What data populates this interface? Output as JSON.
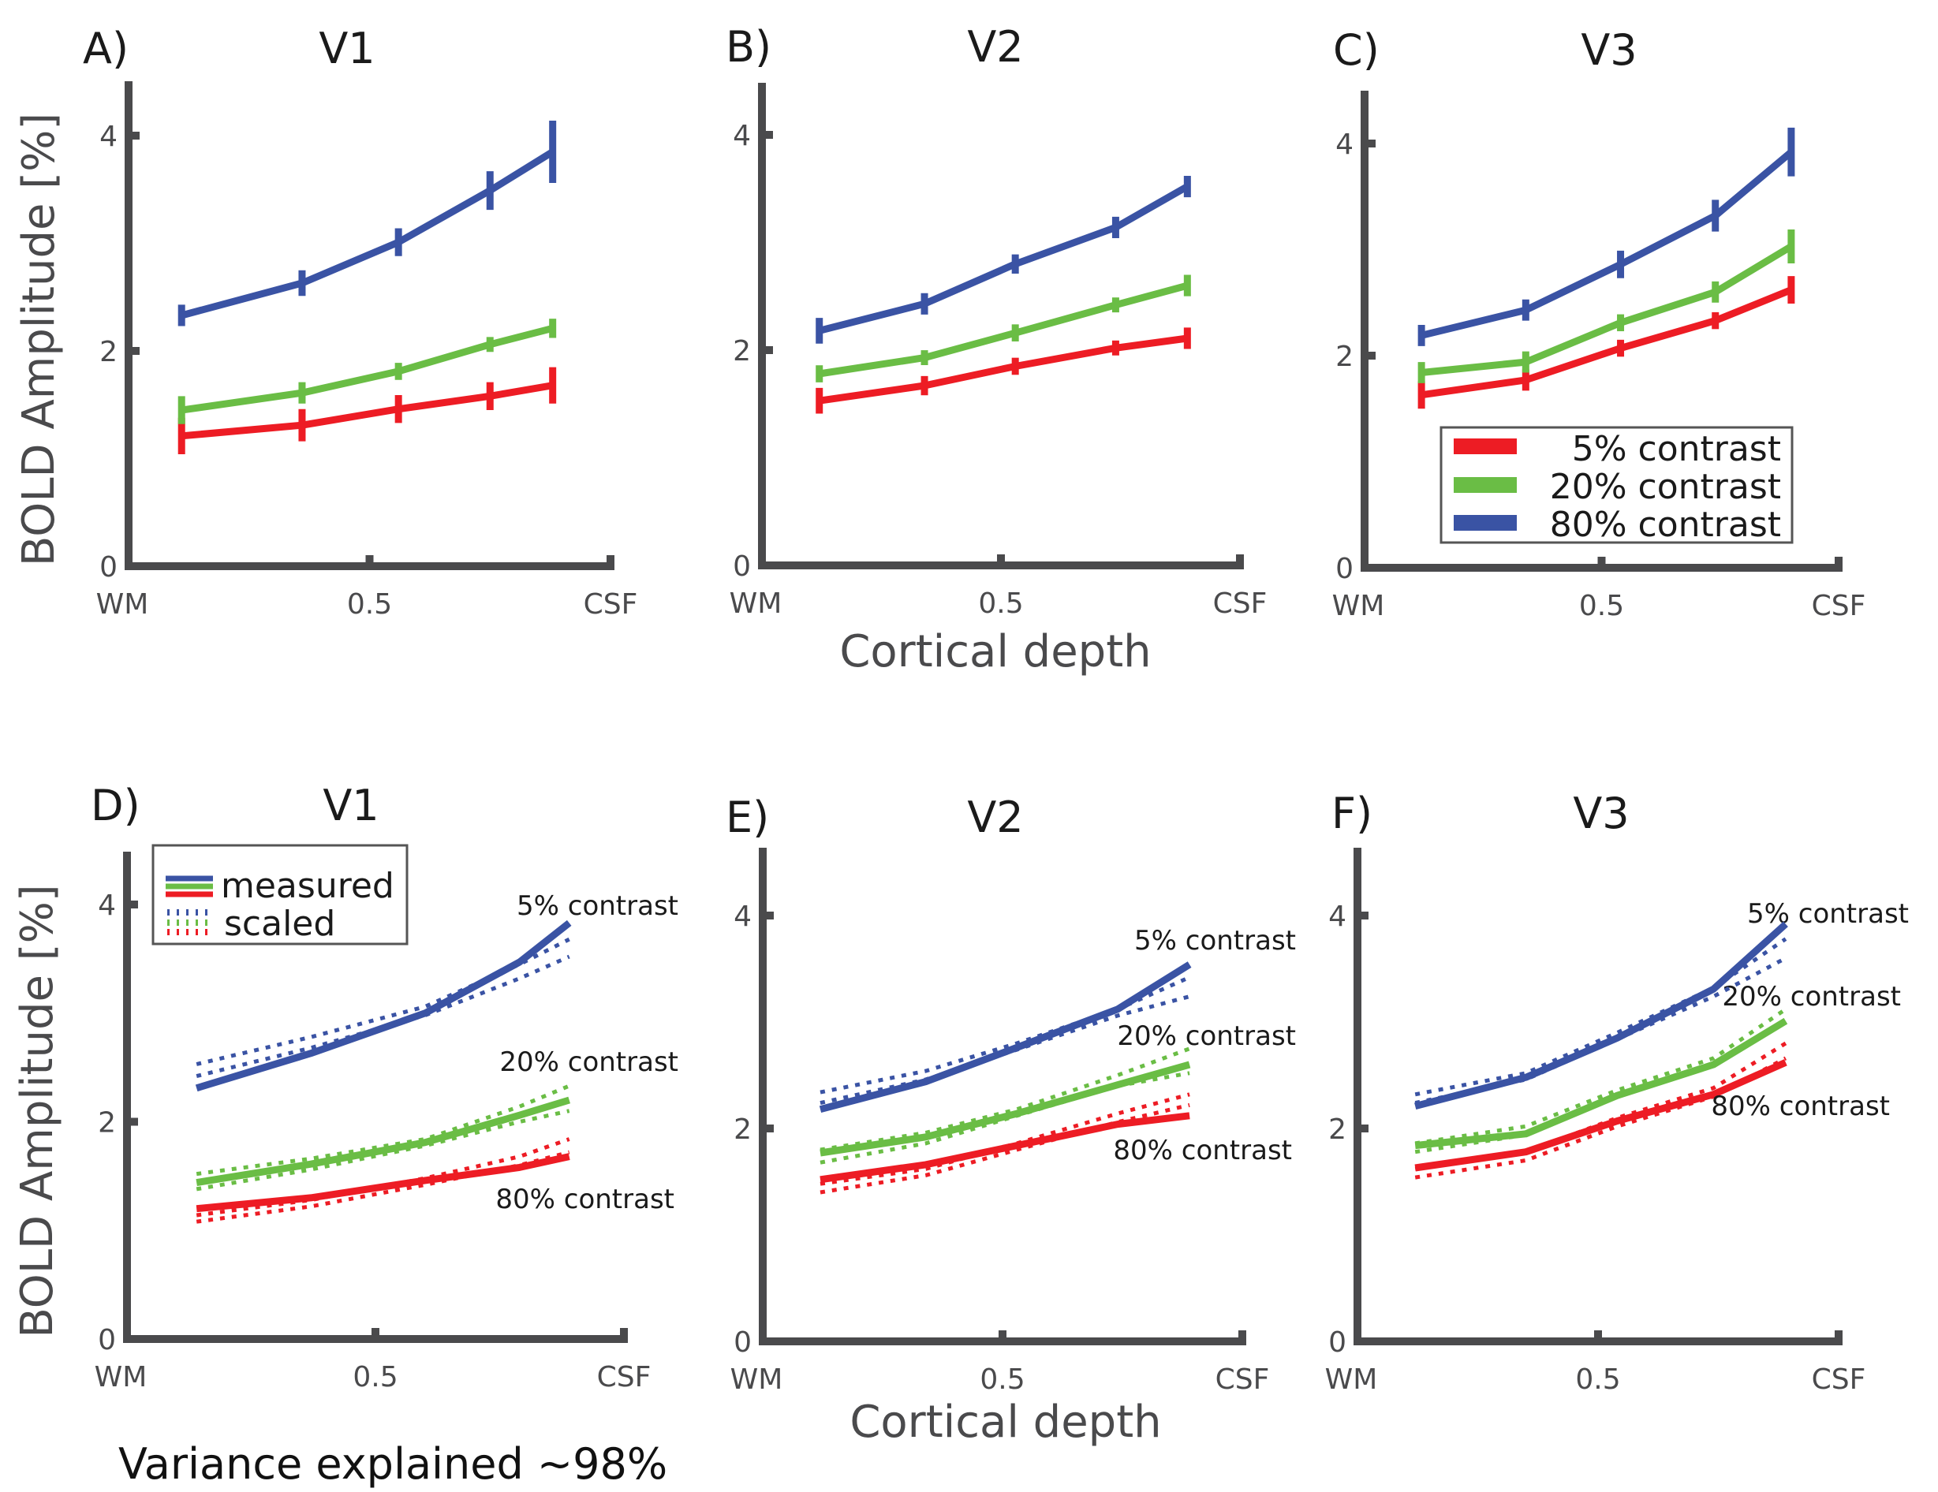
{
  "figure": {
    "shared_xlabel": "Cortical depth",
    "footer": "Variance explained ~98%"
  },
  "colors": {
    "c5": "#ED1C24",
    "c20": "#6ABD45",
    "c80": "#3A53A4",
    "axis": "#4A4A4C"
  },
  "legend_top": {
    "items": [
      {
        "label": "5% contrast",
        "color": "#ED1C24"
      },
      {
        "label": "20% contrast",
        "color": "#6ABD45"
      },
      {
        "label": "80% contrast",
        "color": "#3A53A4"
      }
    ]
  },
  "legend_bottom": {
    "measured_label": "measured",
    "scaled_label": "scaled"
  },
  "chart_data": [
    {
      "type": "line",
      "panel": "A)",
      "title": "V1",
      "ylabel": "BOLD Amplitude [%]",
      "xlabel": "",
      "xlim": [
        0,
        1
      ],
      "ylim": [
        0,
        4.5
      ],
      "yticks": [
        0,
        2,
        4
      ],
      "xticks": [
        {
          "value": 0,
          "label": "WM"
        },
        {
          "value": 0.5,
          "label": "0.5"
        },
        {
          "value": 1,
          "label": "CSF"
        }
      ],
      "x": [
        0.11,
        0.36,
        0.56,
        0.75,
        0.88
      ],
      "series": [
        {
          "name": "5% contrast",
          "color": "#ED1C24",
          "values": [
            1.21,
            1.31,
            1.46,
            1.58,
            1.68
          ],
          "error": [
            0.14,
            0.12,
            0.1,
            0.1,
            0.14
          ]
        },
        {
          "name": "20% contrast",
          "color": "#6ABD45",
          "values": [
            1.45,
            1.61,
            1.81,
            2.06,
            2.21
          ],
          "error": [
            0.1,
            0.07,
            0.05,
            0.04,
            0.06
          ]
        },
        {
          "name": "80% contrast",
          "color": "#3A53A4",
          "values": [
            2.33,
            2.63,
            3.01,
            3.49,
            3.85
          ],
          "error": [
            0.07,
            0.09,
            0.1,
            0.15,
            0.26
          ]
        }
      ]
    },
    {
      "type": "line",
      "panel": "B)",
      "title": "V2",
      "ylabel": "",
      "xlabel": "",
      "xlim": [
        0,
        1
      ],
      "ylim": [
        0,
        4.5
      ],
      "yticks": [
        0,
        2,
        4
      ],
      "xticks": [
        {
          "value": 0,
          "label": "WM"
        },
        {
          "value": 0.5,
          "label": "0.5"
        },
        {
          "value": 1,
          "label": "CSF"
        }
      ],
      "x": [
        0.12,
        0.34,
        0.53,
        0.74,
        0.89
      ],
      "series": [
        {
          "name": "5% contrast",
          "color": "#ED1C24",
          "values": [
            1.53,
            1.67,
            1.85,
            2.02,
            2.11
          ],
          "error": [
            0.09,
            0.06,
            0.05,
            0.04,
            0.07
          ]
        },
        {
          "name": "20% contrast",
          "color": "#6ABD45",
          "values": [
            1.78,
            1.93,
            2.16,
            2.42,
            2.6
          ],
          "error": [
            0.05,
            0.04,
            0.05,
            0.04,
            0.07
          ]
        },
        {
          "name": "80% contrast",
          "color": "#3A53A4",
          "values": [
            2.18,
            2.43,
            2.8,
            3.14,
            3.52
          ],
          "error": [
            0.09,
            0.07,
            0.06,
            0.07,
            0.07
          ]
        }
      ]
    },
    {
      "type": "line",
      "panel": "C)",
      "title": "V3",
      "ylabel": "",
      "xlabel": "",
      "xlim": [
        0,
        1
      ],
      "ylim": [
        0,
        4.5
      ],
      "yticks": [
        0,
        2,
        4
      ],
      "xticks": [
        {
          "value": 0,
          "label": "WM"
        },
        {
          "value": 0.5,
          "label": "0.5"
        },
        {
          "value": 1,
          "label": "CSF"
        }
      ],
      "x": [
        0.12,
        0.34,
        0.54,
        0.74,
        0.9
      ],
      "series": [
        {
          "name": "5% contrast",
          "color": "#ED1C24",
          "values": [
            1.63,
            1.77,
            2.07,
            2.33,
            2.62
          ],
          "error": [
            0.1,
            0.07,
            0.05,
            0.05,
            0.1
          ]
        },
        {
          "name": "20% contrast",
          "color": "#6ABD45",
          "values": [
            1.84,
            1.94,
            2.31,
            2.6,
            3.03
          ],
          "error": [
            0.07,
            0.07,
            0.05,
            0.07,
            0.13
          ]
        },
        {
          "name": "80% contrast",
          "color": "#3A53A4",
          "values": [
            2.19,
            2.43,
            2.86,
            3.32,
            3.92
          ],
          "error": [
            0.07,
            0.07,
            0.1,
            0.12,
            0.2
          ]
        }
      ],
      "legend": "bottom-right"
    },
    {
      "type": "line",
      "panel": "D)",
      "title": "V1",
      "ylabel": "BOLD Amplitude [%]",
      "xlabel": "",
      "xlim": [
        0,
        1
      ],
      "ylim": [
        0,
        4.5
      ],
      "yticks": [
        0,
        2,
        4
      ],
      "xticks": [
        {
          "value": 0,
          "label": "WM"
        },
        {
          "value": 0.5,
          "label": "0.5"
        },
        {
          "value": 1,
          "label": "CSF"
        }
      ],
      "x": [
        0.14,
        0.37,
        0.6,
        0.79,
        0.89
      ],
      "series": [
        {
          "name": "5% contrast",
          "color": "#ED1C24",
          "label": "5% contrast",
          "measured": [
            1.2,
            1.3,
            1.46,
            1.58,
            1.68
          ],
          "scaled_low": [
            1.08,
            1.22,
            1.42,
            1.6,
            1.72
          ],
          "scaled_high": [
            1.14,
            1.28,
            1.48,
            1.68,
            1.84
          ]
        },
        {
          "name": "20% contrast",
          "color": "#6ABD45",
          "label": "20% contrast",
          "measured": [
            1.44,
            1.61,
            1.81,
            2.06,
            2.2
          ],
          "scaled_low": [
            1.38,
            1.56,
            1.78,
            2.0,
            2.1
          ],
          "scaled_high": [
            1.52,
            1.66,
            1.84,
            2.14,
            2.33
          ]
        },
        {
          "name": "80% contrast",
          "color": "#3A53A4",
          "label": "80% contrast",
          "measured": [
            2.31,
            2.63,
            3.0,
            3.47,
            3.83
          ],
          "scaled_low": [
            2.42,
            2.68,
            2.98,
            3.32,
            3.52
          ],
          "scaled_high": [
            2.53,
            2.78,
            3.06,
            3.45,
            3.68
          ]
        }
      ],
      "legend": "top-left"
    },
    {
      "type": "line",
      "panel": "E)",
      "title": "V2",
      "ylabel": "",
      "xlabel": "Cortical depth",
      "xlim": [
        0,
        1
      ],
      "ylim": [
        0,
        4.5
      ],
      "yticks": [
        0,
        2,
        4
      ],
      "xticks": [
        {
          "value": 0,
          "label": "WM"
        },
        {
          "value": 0.5,
          "label": "0.5"
        },
        {
          "value": 1,
          "label": "CSF"
        }
      ],
      "x": [
        0.12,
        0.34,
        0.53,
        0.74,
        0.89
      ],
      "series": [
        {
          "name": "5% contrast",
          "color": "#ED1C24",
          "label": "5% contrast",
          "measured": [
            1.52,
            1.66,
            1.84,
            2.04,
            2.12
          ],
          "scaled_low": [
            1.4,
            1.56,
            1.8,
            2.06,
            2.22
          ],
          "scaled_high": [
            1.48,
            1.62,
            1.86,
            2.14,
            2.32
          ]
        },
        {
          "name": "20% contrast",
          "color": "#6ABD45",
          "label": "20% contrast",
          "measured": [
            1.77,
            1.92,
            2.14,
            2.41,
            2.6
          ],
          "scaled_low": [
            1.68,
            1.86,
            2.12,
            2.4,
            2.52
          ],
          "scaled_high": [
            1.8,
            1.96,
            2.18,
            2.5,
            2.75
          ]
        },
        {
          "name": "80% contrast",
          "color": "#3A53A4",
          "label": "80% contrast",
          "measured": [
            2.18,
            2.44,
            2.76,
            3.12,
            3.54
          ],
          "scaled_low": [
            2.24,
            2.46,
            2.74,
            3.06,
            3.24
          ],
          "scaled_high": [
            2.34,
            2.54,
            2.8,
            3.12,
            3.42
          ]
        }
      ]
    },
    {
      "type": "line",
      "panel": "F)",
      "title": "V3",
      "ylabel": "",
      "xlabel": "",
      "xlim": [
        0,
        1
      ],
      "ylim": [
        0,
        4.5
      ],
      "yticks": [
        0,
        2,
        4
      ],
      "xticks": [
        {
          "value": 0,
          "label": "WM"
        },
        {
          "value": 0.5,
          "label": "0.5"
        },
        {
          "value": 1,
          "label": "CSF"
        }
      ],
      "x": [
        0.12,
        0.35,
        0.54,
        0.74,
        0.89
      ],
      "series": [
        {
          "name": "5% contrast",
          "color": "#ED1C24",
          "label": "5% contrast",
          "measured": [
            1.63,
            1.78,
            2.07,
            2.32,
            2.62
          ],
          "scaled_low": [
            1.54,
            1.7,
            2.02,
            2.3,
            2.66
          ],
          "scaled_high": [
            1.62,
            1.78,
            2.1,
            2.38,
            2.8
          ]
        },
        {
          "name": "20% contrast",
          "color": "#6ABD45",
          "label": "20% contrast",
          "measured": [
            1.84,
            1.95,
            2.31,
            2.6,
            3.01
          ],
          "scaled_low": [
            1.78,
            1.94,
            2.3,
            2.6,
            3.02
          ],
          "scaled_high": [
            1.86,
            2.02,
            2.36,
            2.66,
            3.12
          ]
        },
        {
          "name": "80% contrast",
          "color": "#3A53A4",
          "label": "80% contrast",
          "measured": [
            2.21,
            2.48,
            2.85,
            3.31,
            3.92
          ],
          "scaled_low": [
            2.24,
            2.46,
            2.84,
            3.24,
            3.6
          ],
          "scaled_high": [
            2.32,
            2.52,
            2.9,
            3.32,
            3.78
          ]
        }
      ]
    }
  ]
}
